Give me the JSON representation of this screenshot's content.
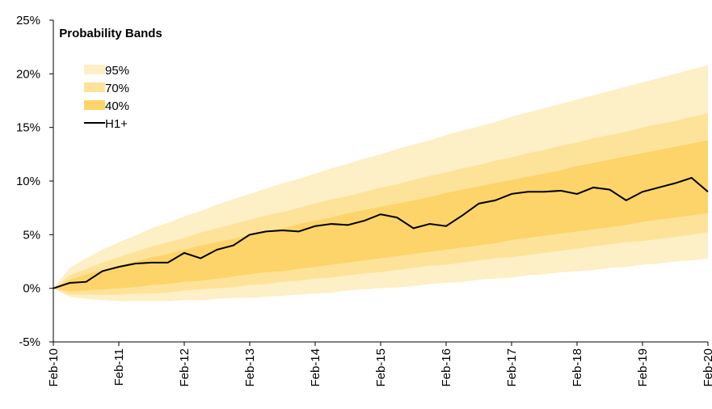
{
  "chart_data": {
    "type": "fan",
    "categories": [
      "Feb-10",
      null,
      null,
      null,
      "Feb-11",
      null,
      null,
      null,
      "Feb-12",
      null,
      null,
      null,
      "Feb-13",
      null,
      null,
      null,
      "Feb-14",
      null,
      null,
      null,
      "Feb-15",
      null,
      null,
      null,
      "Feb-16",
      null,
      null,
      null,
      "Feb-17",
      null,
      null,
      null,
      "Feb-18",
      null,
      null,
      null,
      "Feb-19",
      null,
      null,
      null,
      "Feb-20"
    ],
    "legend_title": "Probability Bands",
    "bands": [
      {
        "name": "95%",
        "color": "#fdefc6",
        "upper": [
          0,
          1.9,
          2.8,
          3.6,
          4.3,
          4.9,
          5.6,
          6.1,
          6.7,
          7.2,
          7.8,
          8.3,
          8.8,
          9.3,
          9.8,
          10.2,
          10.7,
          11.2,
          11.6,
          12.1,
          12.5,
          13.0,
          13.4,
          13.8,
          14.3,
          14.7,
          15.1,
          15.5,
          16.0,
          16.4,
          16.8,
          17.2,
          17.6,
          18.0,
          18.4,
          18.8,
          19.2,
          19.6,
          20.0,
          20.4,
          20.8
        ],
        "lower": [
          0,
          -0.8,
          -1.0,
          -1.1,
          -1.2,
          -1.2,
          -1.2,
          -1.2,
          -1.1,
          -1.1,
          -1.0,
          -0.9,
          -0.9,
          -0.8,
          -0.7,
          -0.6,
          -0.5,
          -0.4,
          -0.2,
          -0.1,
          0.0,
          0.1,
          0.2,
          0.4,
          0.5,
          0.6,
          0.8,
          0.9,
          1.0,
          1.2,
          1.3,
          1.5,
          1.6,
          1.7,
          1.9,
          2.0,
          2.2,
          2.3,
          2.5,
          2.6,
          2.8
        ]
      },
      {
        "name": "70%",
        "color": "#fde39a",
        "upper": [
          0,
          1.2,
          1.8,
          2.4,
          2.9,
          3.4,
          3.9,
          4.3,
          4.7,
          5.2,
          5.6,
          6.0,
          6.4,
          6.8,
          7.1,
          7.5,
          7.9,
          8.3,
          8.6,
          9.0,
          9.4,
          9.7,
          10.1,
          10.5,
          10.8,
          11.2,
          11.5,
          11.9,
          12.2,
          12.6,
          12.9,
          13.3,
          13.6,
          14.0,
          14.3,
          14.6,
          15.0,
          15.3,
          15.6,
          16.0,
          16.3
        ],
        "lower": [
          0,
          -0.6,
          -0.6,
          -0.6,
          -0.6,
          -0.5,
          -0.5,
          -0.4,
          -0.2,
          -0.1,
          0.0,
          0.1,
          0.3,
          0.4,
          0.6,
          0.7,
          0.9,
          1.0,
          1.2,
          1.4,
          1.5,
          1.7,
          1.9,
          2.1,
          2.2,
          2.4,
          2.6,
          2.8,
          2.9,
          3.1,
          3.3,
          3.5,
          3.7,
          3.9,
          4.1,
          4.3,
          4.4,
          4.6,
          4.8,
          5.0,
          5.2
        ]
      },
      {
        "name": "40%",
        "color": "#fcd46a",
        "upper": [
          0,
          0.8,
          1.3,
          1.7,
          2.1,
          2.5,
          2.9,
          3.2,
          3.6,
          4.0,
          4.3,
          4.6,
          5.0,
          5.3,
          5.6,
          6.0,
          6.3,
          6.6,
          7.0,
          7.3,
          7.6,
          7.9,
          8.2,
          8.5,
          8.9,
          9.2,
          9.5,
          9.8,
          10.1,
          10.4,
          10.7,
          11.0,
          11.4,
          11.7,
          12.0,
          12.3,
          12.6,
          12.9,
          13.2,
          13.5,
          13.8
        ],
        "lower": [
          0,
          -0.3,
          -0.2,
          -0.1,
          0.0,
          0.1,
          0.3,
          0.4,
          0.6,
          0.7,
          0.9,
          1.1,
          1.3,
          1.5,
          1.6,
          1.8,
          2.0,
          2.2,
          2.4,
          2.6,
          2.8,
          3.0,
          3.2,
          3.4,
          3.6,
          3.8,
          4.0,
          4.2,
          4.5,
          4.7,
          4.9,
          5.1,
          5.3,
          5.5,
          5.7,
          5.9,
          6.2,
          6.4,
          6.6,
          6.8,
          7.0
        ]
      }
    ],
    "series": [
      {
        "name": "H1+",
        "color": "#000000",
        "values": [
          0,
          0.5,
          0.6,
          1.6,
          2.0,
          2.3,
          2.4,
          2.4,
          3.3,
          2.8,
          3.6,
          4.0,
          5.0,
          5.3,
          5.4,
          5.3,
          5.8,
          6.0,
          5.9,
          6.3,
          6.9,
          6.6,
          5.6,
          6.0,
          5.8,
          6.8,
          7.9,
          8.2,
          8.8,
          9.0,
          9.0,
          9.1,
          8.8,
          9.4,
          9.2,
          8.2,
          9.0,
          9.4,
          9.8,
          10.3,
          9.0
        ]
      }
    ],
    "ylim": [
      -5,
      25
    ],
    "yticks": [
      {
        "value": -5,
        "label": "-5%"
      },
      {
        "value": 0,
        "label": "0%"
      },
      {
        "value": 5,
        "label": "5%"
      },
      {
        "value": 10,
        "label": "10%"
      },
      {
        "value": 15,
        "label": "15%"
      },
      {
        "value": 20,
        "label": "20%"
      },
      {
        "value": 25,
        "label": "25%"
      }
    ]
  }
}
